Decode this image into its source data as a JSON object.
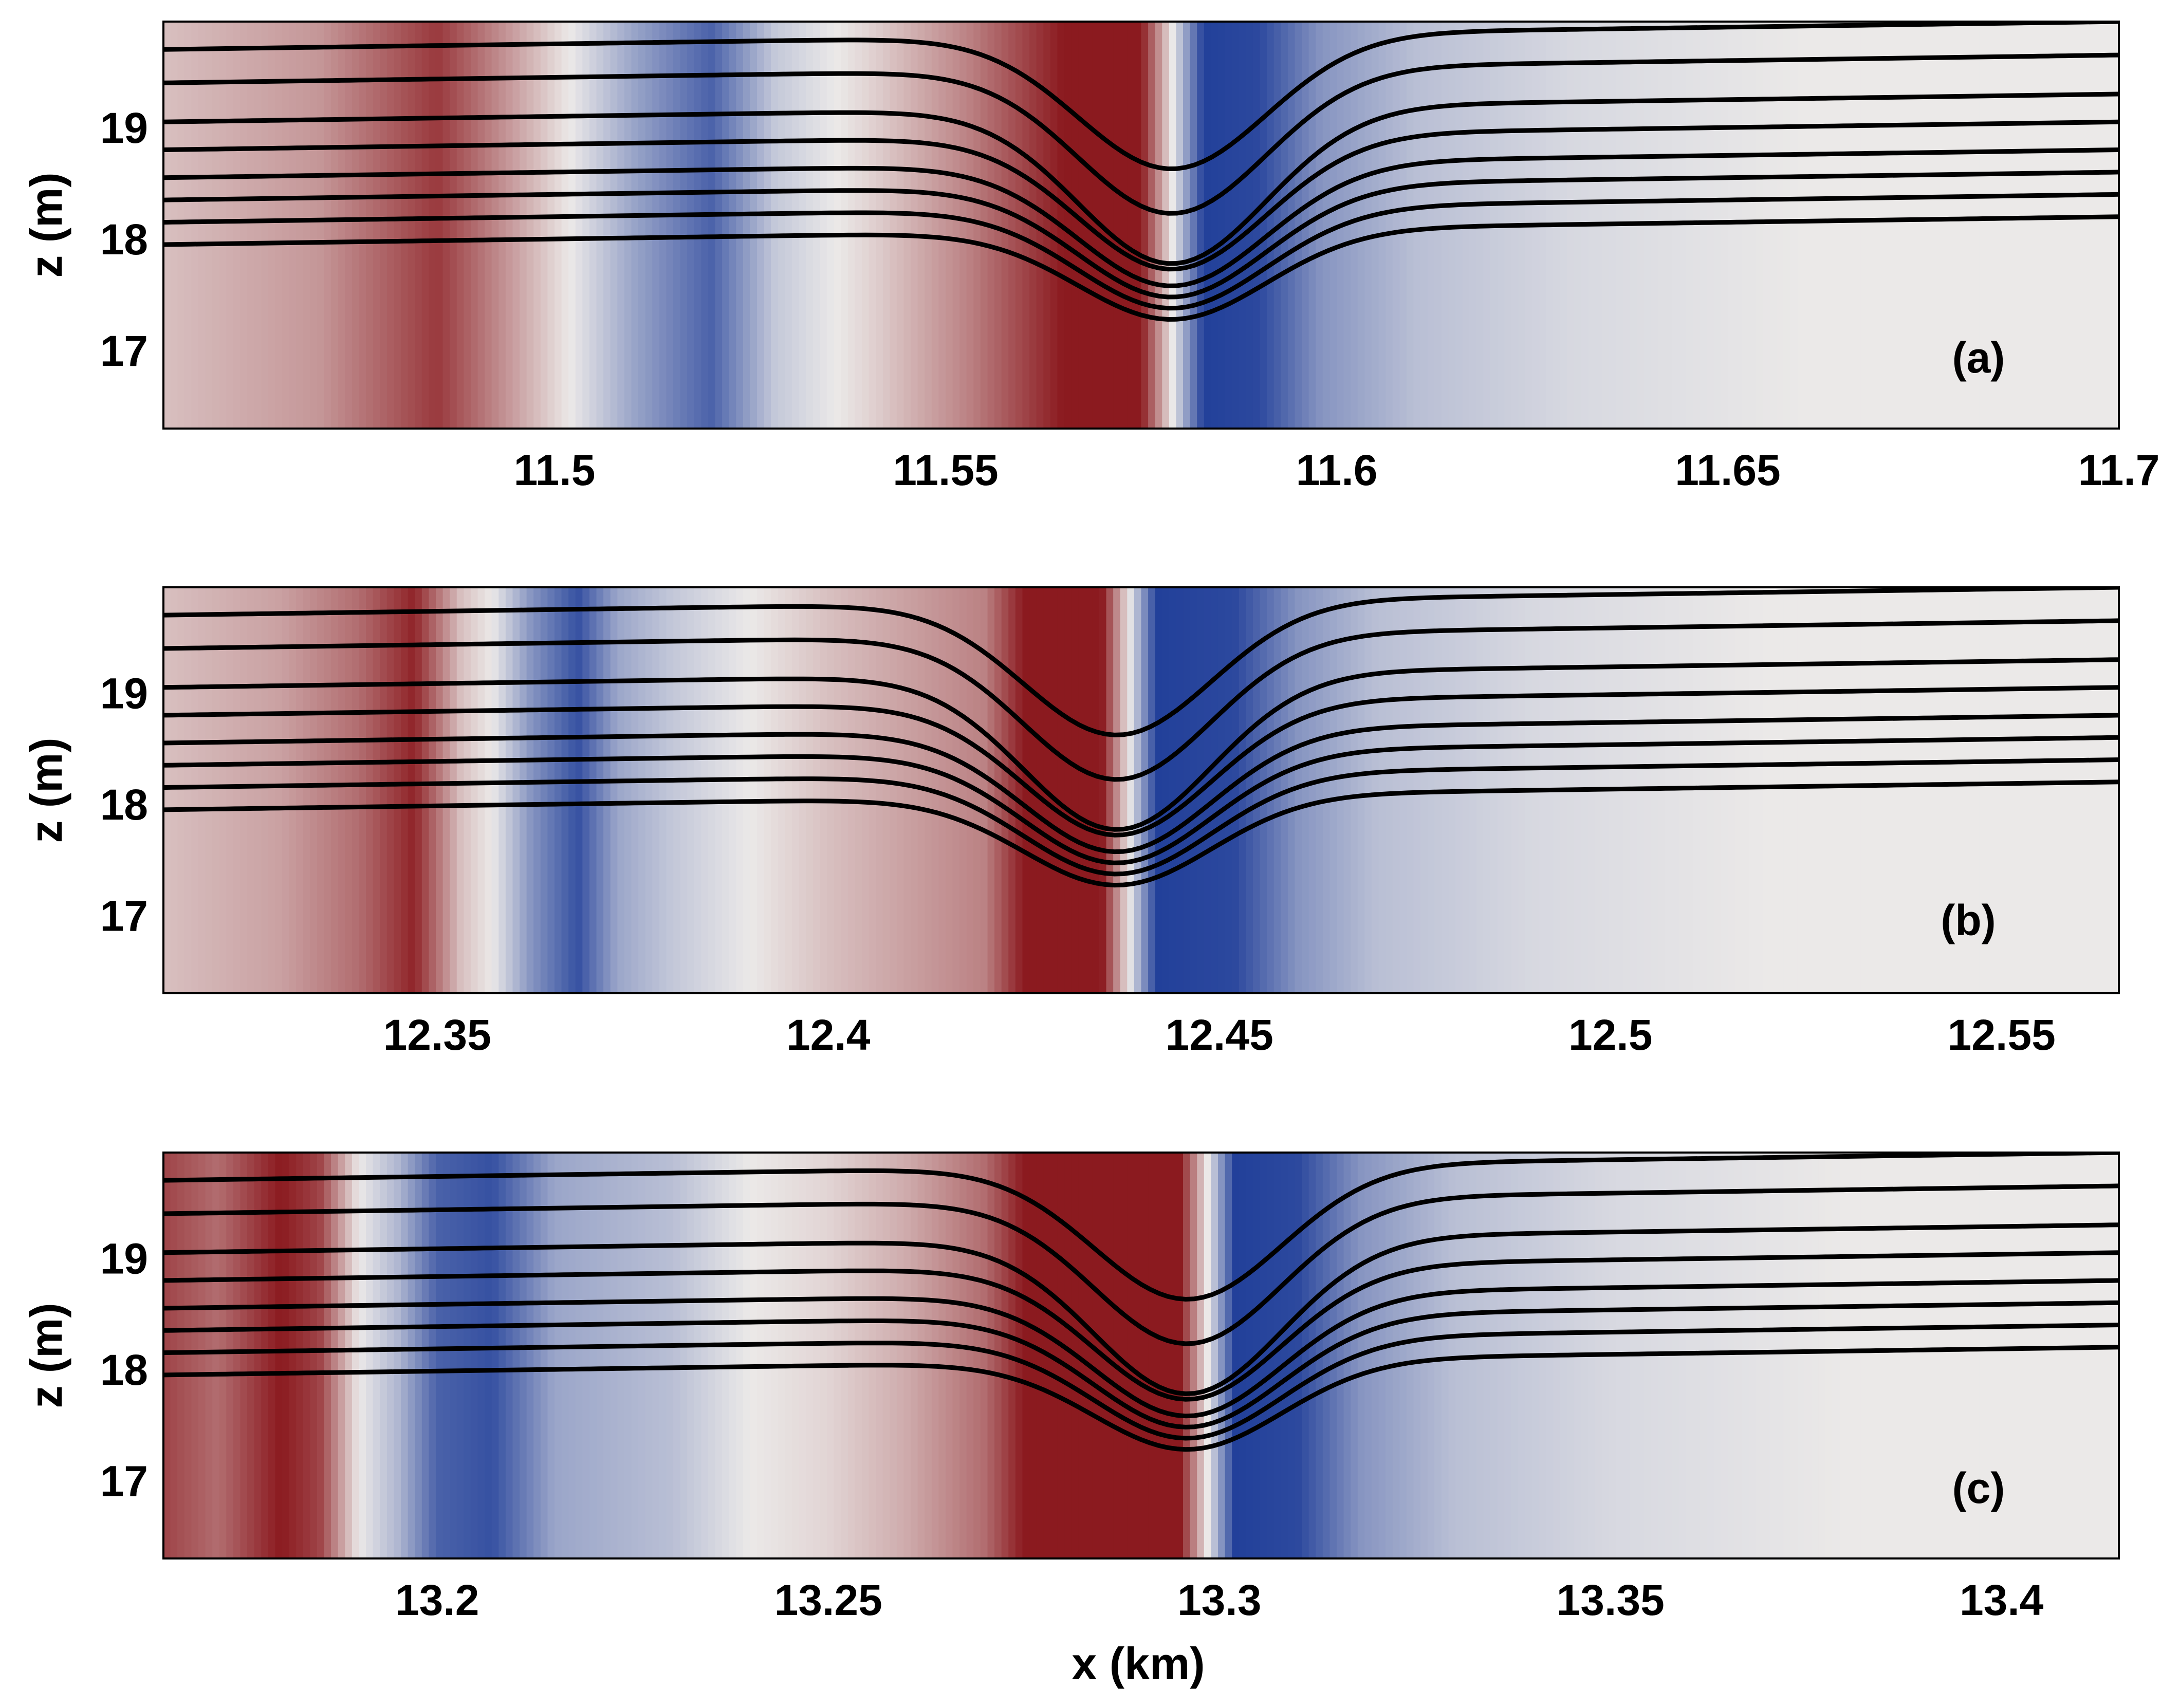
{
  "chart_data": [
    {
      "type": "heatmap",
      "panel_label": "(a)",
      "xlabel": "",
      "ylabel": "z (m)",
      "xlim": [
        11.45,
        11.7
      ],
      "ylim": [
        16.3,
        19.95
      ],
      "x_ticks": [
        11.5,
        11.55,
        11.6,
        11.65,
        11.7
      ],
      "x_tick_labels": [
        "11.5",
        "11.55",
        "11.6",
        "11.65",
        "11.7"
      ],
      "y_ticks": [
        17,
        18,
        19
      ],
      "y_tick_labels": [
        "17",
        "18",
        "19"
      ],
      "colormap": "diverging red-white-blue",
      "colors": {
        "positive": "#8b1a1f",
        "neutral": "#ebe9e8",
        "negative": "#22409a"
      },
      "field_profile": [
        [
          11.45,
          0.2
        ],
        [
          11.47,
          0.4
        ],
        [
          11.485,
          0.85
        ],
        [
          11.502,
          0.0
        ],
        [
          11.51,
          -0.4
        ],
        [
          11.52,
          -0.8
        ],
        [
          11.528,
          -0.2
        ],
        [
          11.54,
          0.1
        ],
        [
          11.553,
          0.5
        ],
        [
          11.565,
          1.0
        ],
        [
          11.575,
          1.0
        ],
        [
          11.579,
          0.0
        ],
        [
          11.583,
          -1.0
        ],
        [
          11.59,
          -0.95
        ],
        [
          11.598,
          -0.5
        ],
        [
          11.61,
          -0.25
        ],
        [
          11.63,
          -0.1
        ],
        [
          11.66,
          0.0
        ],
        [
          11.7,
          0.0
        ]
      ],
      "trough_center_x": 11.579,
      "trough_halfwidth_x": 0.017,
      "flat_levels_right": [
        19.95,
        19.65,
        19.3,
        19.05,
        18.8,
        18.6,
        18.4,
        18.2
      ],
      "trough_depths": [
        1.2,
        1.3,
        1.4,
        1.2,
        1.1,
        1.0,
        0.9,
        0.8
      ]
    },
    {
      "type": "heatmap",
      "panel_label": "(b)",
      "xlabel": "",
      "ylabel": "z (m)",
      "xlim": [
        12.315,
        12.565
      ],
      "ylim": [
        16.3,
        19.95
      ],
      "x_ticks": [
        12.35,
        12.4,
        12.45,
        12.5,
        12.55
      ],
      "x_tick_labels": [
        "12.35",
        "12.4",
        "12.45",
        "12.5",
        "12.55"
      ],
      "y_ticks": [
        17,
        18,
        19
      ],
      "y_tick_labels": [
        "17",
        "18",
        "19"
      ],
      "colormap": "diverging red-white-blue",
      "colors": {
        "positive": "#8b1a1f",
        "neutral": "#ebe9e8",
        "negative": "#22409a"
      },
      "field_profile": [
        [
          12.315,
          0.2
        ],
        [
          12.33,
          0.35
        ],
        [
          12.34,
          0.6
        ],
        [
          12.347,
          0.95
        ],
        [
          12.353,
          0.2
        ],
        [
          12.357,
          0.0
        ],
        [
          12.362,
          -0.5
        ],
        [
          12.368,
          -0.9
        ],
        [
          12.373,
          -0.4
        ],
        [
          12.38,
          -0.2
        ],
        [
          12.39,
          0.0
        ],
        [
          12.4,
          0.2
        ],
        [
          12.41,
          0.35
        ],
        [
          12.42,
          0.5
        ],
        [
          12.425,
          1.0
        ],
        [
          12.435,
          1.0
        ],
        [
          12.4385,
          0.0
        ],
        [
          12.442,
          -1.0
        ],
        [
          12.452,
          -0.95
        ],
        [
          12.46,
          -0.5
        ],
        [
          12.47,
          -0.25
        ],
        [
          12.49,
          -0.1
        ],
        [
          12.52,
          0.0
        ],
        [
          12.565,
          0.0
        ]
      ],
      "trough_center_x": 12.437,
      "trough_halfwidth_x": 0.017,
      "flat_levels_right": [
        19.95,
        19.65,
        19.3,
        19.05,
        18.8,
        18.6,
        18.4,
        18.2
      ],
      "trough_depths": [
        1.2,
        1.3,
        1.4,
        1.2,
        1.1,
        1.0,
        0.9,
        0.8
      ]
    },
    {
      "type": "heatmap",
      "panel_label": "(c)",
      "xlabel": "x (km)",
      "ylabel": "z (m)",
      "xlim": [
        13.165,
        13.415
      ],
      "ylim": [
        16.3,
        19.95
      ],
      "x_ticks": [
        13.2,
        13.25,
        13.3,
        13.35,
        13.4
      ],
      "x_tick_labels": [
        "13.2",
        "13.25",
        "13.3",
        "13.35",
        "13.4"
      ],
      "y_ticks": [
        17,
        18,
        19
      ],
      "y_tick_labels": [
        "17",
        "18",
        "19"
      ],
      "colormap": "diverging red-white-blue",
      "colors": {
        "positive": "#8b1a1f",
        "neutral": "#ebe9e8",
        "negative": "#22409a"
      },
      "field_profile": [
        [
          13.165,
          0.8
        ],
        [
          13.172,
          0.6
        ],
        [
          13.18,
          1.0
        ],
        [
          13.185,
          0.8
        ],
        [
          13.19,
          0.0
        ],
        [
          13.195,
          -0.3
        ],
        [
          13.2,
          -0.8
        ],
        [
          13.207,
          -0.9
        ],
        [
          13.215,
          -0.4
        ],
        [
          13.23,
          -0.25
        ],
        [
          13.24,
          0.0
        ],
        [
          13.25,
          0.1
        ],
        [
          13.26,
          0.3
        ],
        [
          13.27,
          0.6
        ],
        [
          13.275,
          1.0
        ],
        [
          13.295,
          1.0
        ],
        [
          13.2985,
          0.0
        ],
        [
          13.302,
          -1.0
        ],
        [
          13.31,
          -0.95
        ],
        [
          13.318,
          -0.5
        ],
        [
          13.33,
          -0.25
        ],
        [
          13.35,
          -0.1
        ],
        [
          13.38,
          0.0
        ],
        [
          13.415,
          0.0
        ]
      ],
      "trough_center_x": 13.296,
      "trough_halfwidth_x": 0.017,
      "flat_levels_right": [
        19.95,
        19.65,
        19.3,
        19.05,
        18.8,
        18.6,
        18.4,
        18.2
      ],
      "trough_depths": [
        1.2,
        1.3,
        1.4,
        1.2,
        1.1,
        1.0,
        0.9,
        0.8
      ]
    }
  ]
}
